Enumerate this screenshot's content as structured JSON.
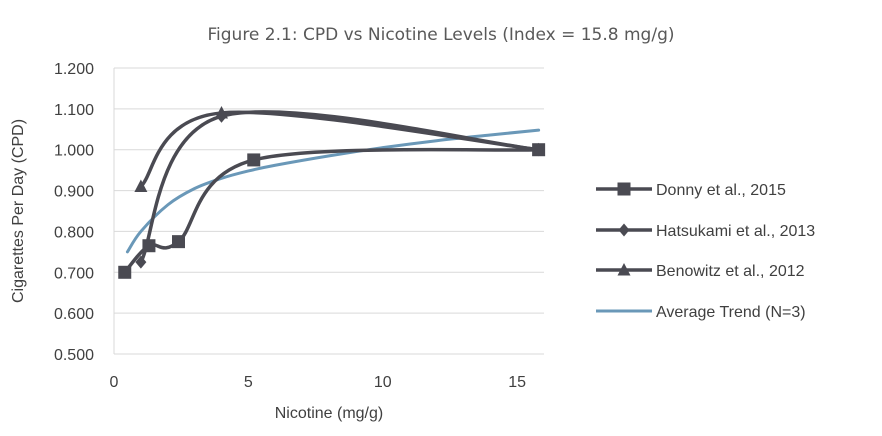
{
  "chart_data": {
    "type": "line",
    "title": "Figure 2.1: CPD vs Nicotine Levels (Index = 15.8 mg/g)",
    "xlabel": "Nicotine (mg/g)",
    "ylabel": "Cigarettes Per Day (CPD)",
    "xlim": [
      0,
      16
    ],
    "ylim": [
      0.5,
      1.2
    ],
    "xticks": [
      0,
      5,
      10,
      15
    ],
    "xtick_labels": [
      "0",
      "5",
      "10",
      "15"
    ],
    "yticks": [
      0.5,
      0.6,
      0.7,
      0.8,
      0.9,
      1.0,
      1.1,
      1.2
    ],
    "ytick_labels": [
      "0.500",
      "0.600",
      "0.700",
      "0.800",
      "0.900",
      "1.000",
      "1.100",
      "1.200"
    ],
    "grid": "horizontal",
    "legend_position": "right",
    "series": [
      {
        "name": "Donny et al., 2015",
        "marker": "square",
        "color": "#4a4a52",
        "x": [
          0.4,
          1.3,
          2.4,
          5.2,
          15.8
        ],
        "y": [
          0.7,
          0.765,
          0.775,
          0.975,
          1.0
        ]
      },
      {
        "name": "Hatsukami et al., 2013",
        "marker": "diamond",
        "color": "#4a4a52",
        "x": [
          1.0,
          4.0,
          15.8
        ],
        "y": [
          0.725,
          1.082,
          1.0
        ]
      },
      {
        "name": "Benowitz et al., 2012",
        "marker": "triangle",
        "color": "#4a4a52",
        "x": [
          1.0,
          4.0,
          15.8
        ],
        "y": [
          0.91,
          1.09,
          1.0
        ]
      },
      {
        "name": "Average Trend (N=3)",
        "marker": "none",
        "color": "#6a98b8",
        "x": [
          0.5,
          1.0,
          2.0,
          3.0,
          4.0,
          5.0,
          6.0,
          8.0,
          10.0,
          12.0,
          14.0,
          15.8
        ],
        "y": [
          0.75,
          0.8,
          0.865,
          0.905,
          0.93,
          0.948,
          0.962,
          0.985,
          1.005,
          1.022,
          1.036,
          1.048
        ]
      }
    ]
  }
}
